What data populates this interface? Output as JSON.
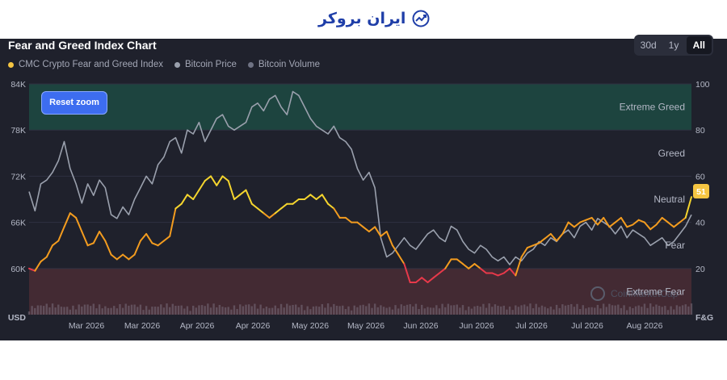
{
  "brand": {
    "name": "ایران بروکر"
  },
  "header": {
    "title": "Fear and Greed Index Chart"
  },
  "range_buttons": [
    {
      "label": "30d",
      "active": false
    },
    {
      "label": "1y",
      "active": false
    },
    {
      "label": "All",
      "active": true
    }
  ],
  "reset_label": "Reset zoom",
  "watermark": "CoinMarketCap",
  "chart_data": {
    "type": "line",
    "legend_position": "top-left",
    "series": [
      {
        "name": "CMC Crypto Fear and Greed Index",
        "color": "#f5c542"
      },
      {
        "name": "Bitcoin Price",
        "color": "#9aa0ad"
      },
      {
        "name": "Bitcoin Volume",
        "color": "#6f7384"
      }
    ],
    "left_axis": {
      "label": "USD",
      "ticks": [
        "84K",
        "78K",
        "72K",
        "66K",
        "60K"
      ],
      "range": [
        54000,
        84000
      ]
    },
    "right_axis": {
      "label": "F&G",
      "ticks": [
        "100",
        "80",
        "60",
        "40",
        "20"
      ],
      "range": [
        0,
        100
      ]
    },
    "x_ticks": [
      "Mar 2026",
      "Mar 2026",
      "Apr 2026",
      "Apr 2026",
      "May 2026",
      "May 2026",
      "Jun 2026",
      "Jun 2026",
      "Jul 2026",
      "Jul 2026",
      "Aug 2026"
    ],
    "zones": [
      {
        "label": "Extreme Greed",
        "from": 80,
        "to": 100,
        "color": "#1d4a43"
      },
      {
        "label": "Greed",
        "from": 60,
        "to": 80,
        "color": null
      },
      {
        "label": "Neutral",
        "from": 40,
        "to": 60,
        "color": null
      },
      {
        "label": "Fear",
        "from": 20,
        "to": 40,
        "color": null
      },
      {
        "label": "Extreme Fear",
        "from": 0,
        "to": 20,
        "color": "#4a2b35"
      }
    ],
    "current_value": "51",
    "fear_greed": [
      [
        0,
        20
      ],
      [
        2,
        19
      ],
      [
        4,
        23
      ],
      [
        6,
        25
      ],
      [
        8,
        30
      ],
      [
        10,
        32
      ],
      [
        12,
        38
      ],
      [
        14,
        44
      ],
      [
        16,
        42
      ],
      [
        18,
        36
      ],
      [
        20,
        30
      ],
      [
        22,
        31
      ],
      [
        24,
        36
      ],
      [
        26,
        32
      ],
      [
        28,
        26
      ],
      [
        30,
        24
      ],
      [
        32,
        26
      ],
      [
        34,
        24
      ],
      [
        36,
        26
      ],
      [
        38,
        32
      ],
      [
        40,
        35
      ],
      [
        42,
        31
      ],
      [
        44,
        30
      ],
      [
        46,
        32
      ],
      [
        48,
        34
      ],
      [
        50,
        46
      ],
      [
        52,
        48
      ],
      [
        54,
        52
      ],
      [
        56,
        50
      ],
      [
        58,
        54
      ],
      [
        60,
        58
      ],
      [
        62,
        60
      ],
      [
        64,
        56
      ],
      [
        66,
        60
      ],
      [
        68,
        58
      ],
      [
        70,
        50
      ],
      [
        72,
        52
      ],
      [
        74,
        54
      ],
      [
        76,
        48
      ],
      [
        78,
        46
      ],
      [
        80,
        44
      ],
      [
        82,
        42
      ],
      [
        84,
        44
      ],
      [
        86,
        46
      ],
      [
        88,
        48
      ],
      [
        90,
        48
      ],
      [
        92,
        50
      ],
      [
        94,
        50
      ],
      [
        96,
        52
      ],
      [
        98,
        50
      ],
      [
        100,
        52
      ],
      [
        102,
        48
      ],
      [
        104,
        46
      ],
      [
        106,
        42
      ],
      [
        108,
        42
      ],
      [
        110,
        40
      ],
      [
        112,
        40
      ],
      [
        114,
        38
      ],
      [
        116,
        36
      ],
      [
        118,
        38
      ],
      [
        120,
        34
      ],
      [
        122,
        36
      ],
      [
        124,
        30
      ],
      [
        126,
        26
      ],
      [
        128,
        22
      ],
      [
        130,
        14
      ],
      [
        132,
        14
      ],
      [
        134,
        16
      ],
      [
        136,
        14
      ],
      [
        138,
        16
      ],
      [
        140,
        18
      ],
      [
        142,
        20
      ],
      [
        144,
        24
      ],
      [
        146,
        24
      ],
      [
        148,
        22
      ],
      [
        150,
        20
      ],
      [
        152,
        22
      ],
      [
        154,
        20
      ],
      [
        156,
        18
      ],
      [
        158,
        18
      ],
      [
        160,
        17
      ],
      [
        162,
        18
      ],
      [
        164,
        20
      ],
      [
        166,
        17
      ],
      [
        168,
        25
      ],
      [
        170,
        29
      ],
      [
        172,
        30
      ],
      [
        174,
        31
      ],
      [
        176,
        33
      ],
      [
        178,
        35
      ],
      [
        180,
        32
      ],
      [
        182,
        35
      ],
      [
        184,
        40
      ],
      [
        186,
        38
      ],
      [
        188,
        40
      ],
      [
        190,
        41
      ],
      [
        192,
        42
      ],
      [
        194,
        39
      ],
      [
        196,
        42
      ],
      [
        198,
        38
      ],
      [
        200,
        40
      ],
      [
        202,
        42
      ],
      [
        204,
        38
      ],
      [
        206,
        39
      ],
      [
        208,
        41
      ],
      [
        210,
        40
      ],
      [
        212,
        37
      ],
      [
        214,
        39
      ],
      [
        216,
        42
      ],
      [
        218,
        40
      ],
      [
        220,
        38
      ],
      [
        222,
        40
      ],
      [
        224,
        42
      ],
      [
        226,
        51
      ]
    ],
    "btc_price": [
      [
        0,
        70000
      ],
      [
        2,
        67500
      ],
      [
        4,
        71000
      ],
      [
        6,
        71500
      ],
      [
        8,
        72500
      ],
      [
        10,
        74000
      ],
      [
        12,
        76500
      ],
      [
        14,
        73000
      ],
      [
        16,
        71000
      ],
      [
        18,
        68500
      ],
      [
        20,
        71000
      ],
      [
        22,
        69500
      ],
      [
        24,
        71500
      ],
      [
        26,
        70500
      ],
      [
        28,
        67000
      ],
      [
        30,
        66500
      ],
      [
        32,
        68000
      ],
      [
        34,
        67000
      ],
      [
        36,
        69000
      ],
      [
        38,
        70500
      ],
      [
        40,
        72000
      ],
      [
        42,
        71000
      ],
      [
        44,
        73500
      ],
      [
        46,
        74500
      ],
      [
        48,
        76500
      ],
      [
        50,
        77000
      ],
      [
        52,
        75000
      ],
      [
        54,
        78000
      ],
      [
        56,
        77500
      ],
      [
        58,
        79000
      ],
      [
        60,
        76500
      ],
      [
        62,
        78000
      ],
      [
        64,
        79500
      ],
      [
        66,
        80000
      ],
      [
        68,
        78500
      ],
      [
        70,
        78000
      ],
      [
        72,
        78500
      ],
      [
        74,
        79000
      ],
      [
        76,
        81000
      ],
      [
        78,
        81500
      ],
      [
        80,
        80500
      ],
      [
        82,
        82000
      ],
      [
        84,
        82500
      ],
      [
        86,
        81000
      ],
      [
        88,
        80000
      ],
      [
        90,
        83000
      ],
      [
        92,
        82500
      ],
      [
        94,
        81000
      ],
      [
        96,
        79500
      ],
      [
        98,
        78500
      ],
      [
        100,
        78000
      ],
      [
        102,
        77500
      ],
      [
        104,
        78500
      ],
      [
        106,
        77000
      ],
      [
        108,
        76500
      ],
      [
        110,
        75500
      ],
      [
        112,
        73000
      ],
      [
        114,
        71500
      ],
      [
        116,
        72500
      ],
      [
        118,
        70500
      ],
      [
        120,
        64000
      ],
      [
        122,
        61500
      ],
      [
        124,
        62000
      ],
      [
        126,
        63000
      ],
      [
        128,
        64000
      ],
      [
        130,
        63000
      ],
      [
        132,
        62500
      ],
      [
        134,
        63500
      ],
      [
        136,
        64500
      ],
      [
        138,
        65000
      ],
      [
        140,
        64000
      ],
      [
        142,
        63500
      ],
      [
        144,
        65500
      ],
      [
        146,
        65000
      ],
      [
        148,
        63500
      ],
      [
        150,
        62500
      ],
      [
        152,
        62000
      ],
      [
        154,
        63000
      ],
      [
        156,
        62500
      ],
      [
        158,
        61500
      ],
      [
        160,
        61000
      ],
      [
        162,
        61500
      ],
      [
        164,
        60500
      ],
      [
        166,
        61500
      ],
      [
        168,
        61000
      ],
      [
        170,
        62000
      ],
      [
        172,
        62500
      ],
      [
        174,
        63500
      ],
      [
        176,
        63000
      ],
      [
        178,
        64000
      ],
      [
        180,
        63500
      ],
      [
        182,
        64500
      ],
      [
        184,
        65000
      ],
      [
        186,
        64000
      ],
      [
        188,
        65500
      ],
      [
        190,
        66000
      ],
      [
        192,
        65000
      ],
      [
        194,
        66500
      ],
      [
        196,
        66000
      ],
      [
        198,
        65500
      ],
      [
        200,
        64500
      ],
      [
        202,
        65500
      ],
      [
        204,
        64000
      ],
      [
        206,
        65000
      ],
      [
        208,
        64500
      ],
      [
        210,
        64000
      ],
      [
        212,
        63000
      ],
      [
        214,
        63500
      ],
      [
        216,
        64000
      ],
      [
        218,
        63000
      ],
      [
        220,
        63500
      ],
      [
        222,
        64500
      ],
      [
        224,
        65500
      ],
      [
        226,
        67000
      ]
    ]
  }
}
